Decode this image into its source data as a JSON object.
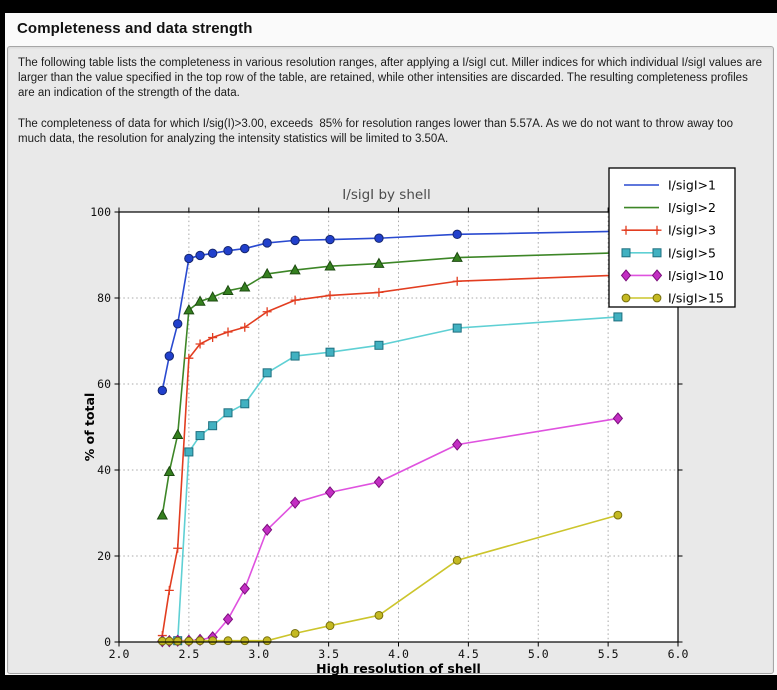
{
  "page": {
    "title": "Completeness and data strength",
    "paragraphs": [
      "The following table lists the completeness in various resolution ranges, after applying a I/sigI cut. Miller indices for which individual I/sigI values are larger than the value specified in the top row of the table, are retained, while other intensities are discarded. The resulting completeness profiles are an indication of the strength of the data.",
      "The completeness of data for which I/sig(I)>3.00, exceeds  85% for resolution ranges lower than 5.57A. As we do not want to throw away too much data, the resolution for analyzing the intensity statistics will be limited to 3.50A."
    ]
  },
  "chart_data": {
    "type": "line",
    "title": "I/sigI by shell",
    "xlabel": "High resolution of shell",
    "ylabel": "% of total",
    "xlim": [
      2.0,
      6.0
    ],
    "ylim": [
      0,
      100
    ],
    "xticks": [
      "2.0",
      "2.5",
      "3.0",
      "3.5",
      "4.0",
      "4.5",
      "5.0",
      "5.5",
      "6.0"
    ],
    "yticks": [
      "0",
      "20",
      "40",
      "60",
      "80",
      "100"
    ],
    "grid": true,
    "legend_position": "upper-right-overlapping-plot",
    "plot_bg": "#ffffff",
    "figure_bg": "#e9e9e9",
    "grid_color": "#a8a8a8",
    "x": [
      2.31,
      2.36,
      2.42,
      2.5,
      2.58,
      2.67,
      2.78,
      2.9,
      3.06,
      3.26,
      3.51,
      3.86,
      4.42,
      5.57
    ],
    "series": [
      {
        "name": "I/sigI>1",
        "color": "#2a4ad0",
        "marker": "circle",
        "marker_fill": "#2140cc",
        "marker_edge": "#15266e",
        "legend_marker": false,
        "values": [
          58.5,
          66.5,
          74.0,
          89.2,
          89.9,
          90.4,
          91.0,
          91.5,
          92.8,
          93.4,
          93.6,
          93.9,
          94.8,
          95.5
        ]
      },
      {
        "name": "I/sigI>2",
        "color": "#3d8627",
        "marker": "triangle",
        "marker_fill": "#35801f",
        "marker_edge": "#1c4a10",
        "legend_marker": false,
        "values": [
          29.5,
          39.6,
          48.2,
          77.2,
          79.2,
          80.2,
          81.7,
          82.5,
          85.6,
          86.5,
          87.4,
          88.0,
          89.4,
          90.5
        ]
      },
      {
        "name": "I/sigI>3",
        "color": "#e23d20",
        "marker": "plus",
        "marker_fill": "#e23d20",
        "marker_edge": "#e23d20",
        "legend_marker": true,
        "values": [
          1.5,
          12.0,
          21.8,
          66.0,
          69.3,
          70.8,
          72.1,
          73.2,
          76.8,
          79.5,
          80.6,
          81.3,
          83.9,
          85.3
        ]
      },
      {
        "name": "I/sigI>5",
        "color": "#5fd0d4",
        "marker": "square",
        "marker_fill": "#41b1c1",
        "marker_edge": "#1e6f7f",
        "legend_marker": true,
        "values": [
          null,
          null,
          0.3,
          44.2,
          48.0,
          50.3,
          53.3,
          55.4,
          62.6,
          66.5,
          67.4,
          69.0,
          73.0,
          75.6
        ]
      },
      {
        "name": "I/sigI>10",
        "color": "#df52df",
        "marker": "diamond",
        "marker_fill": "#c32ec3",
        "marker_edge": "#7c0f7c",
        "legend_marker": true,
        "values": [
          0.2,
          0.2,
          0.3,
          0.3,
          0.5,
          1.1,
          5.3,
          12.4,
          26.1,
          32.4,
          34.8,
          37.2,
          45.9,
          52.0
        ]
      },
      {
        "name": "I/sigI>15",
        "color": "#ccc52c",
        "marker": "circle_small",
        "marker_fill": "#c4b922",
        "marker_edge": "#77700e",
        "legend_marker": true,
        "values": [
          0.2,
          0.2,
          0.2,
          0.2,
          0.3,
          0.3,
          0.3,
          0.3,
          0.3,
          2.0,
          3.8,
          6.2,
          19.0,
          29.5
        ]
      }
    ]
  }
}
